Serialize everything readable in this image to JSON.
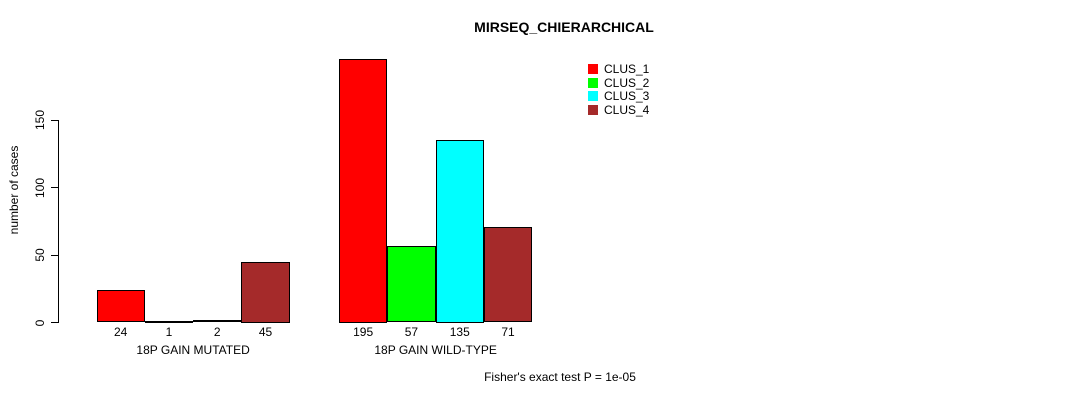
{
  "chart_data": {
    "type": "bar",
    "title": "MIRSEQ_CHIERARCHICAL",
    "ylabel": "number of cases",
    "xlabel": "",
    "categories": [
      "18P GAIN MUTATED",
      "18P GAIN WILD-TYPE"
    ],
    "series": [
      {
        "name": "CLUS_1",
        "color": "#ff0000",
        "values": [
          24,
          195
        ]
      },
      {
        "name": "CLUS_2",
        "color": "#00ff00",
        "values": [
          1,
          57
        ]
      },
      {
        "name": "CLUS_3",
        "color": "#00ffff",
        "values": [
          2,
          135
        ]
      },
      {
        "name": "CLUS_4",
        "color": "#a52a2a",
        "values": [
          45,
          71
        ]
      }
    ],
    "bar_value_labels": [
      [
        "24",
        "1",
        "2",
        "45"
      ],
      [
        "195",
        "57",
        "135",
        "71"
      ]
    ],
    "yticks": [
      "0",
      "50",
      "100",
      "150"
    ],
    "ylim": [
      0,
      195
    ],
    "grid": false,
    "legend": {
      "position": "top-right",
      "entries": [
        "CLUS_1",
        "CLUS_2",
        "CLUS_3",
        "CLUS_4"
      ]
    },
    "annotation": "Fisher's exact test P = 1e-05",
    "colors": {
      "axis": "#000000",
      "text": "#000000",
      "background": "#ffffff"
    }
  }
}
